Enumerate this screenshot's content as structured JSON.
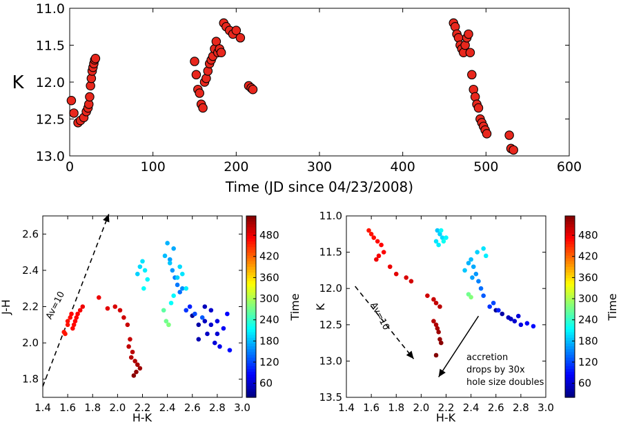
{
  "chart_data": [
    {
      "type": "scatter",
      "title": "",
      "xlabel": "Time (JD since 04/23/2008)",
      "ylabel": "K",
      "xlim": [
        0,
        600
      ],
      "ylim": [
        13.0,
        11.0
      ],
      "xticks": [
        "0",
        "100",
        "200",
        "300",
        "400",
        "500",
        "600"
      ],
      "yticks": [
        "11.0",
        "11.5",
        "12.0",
        "12.5",
        "13.0"
      ],
      "marker_color": "#e8271d",
      "x": [
        2,
        5,
        10,
        13,
        17,
        20,
        22,
        23,
        24,
        25,
        26,
        27,
        28,
        29,
        30,
        31,
        150,
        152,
        154,
        156,
        158,
        160,
        162,
        164,
        166,
        168,
        170,
        172,
        174,
        176,
        178,
        180,
        182,
        185,
        188,
        192,
        196,
        200,
        205,
        215,
        218,
        220,
        461,
        463,
        465,
        467,
        469,
        471,
        473,
        475,
        477,
        479,
        481,
        483,
        485,
        487,
        489,
        491,
        493,
        495,
        497,
        499,
        501,
        528,
        530,
        533
      ],
      "y": [
        12.25,
        12.42,
        12.55,
        12.52,
        12.48,
        12.4,
        12.35,
        12.3,
        12.2,
        12.05,
        11.95,
        11.85,
        11.8,
        11.75,
        11.7,
        11.68,
        11.72,
        11.9,
        12.1,
        12.15,
        12.3,
        12.35,
        12.0,
        11.95,
        11.85,
        11.75,
        11.7,
        11.65,
        11.55,
        11.45,
        11.6,
        11.55,
        11.6,
        11.2,
        11.25,
        11.3,
        11.35,
        11.3,
        11.4,
        12.05,
        12.08,
        12.1,
        11.2,
        11.25,
        11.35,
        11.4,
        11.5,
        11.55,
        11.6,
        11.5,
        11.4,
        11.35,
        11.6,
        11.9,
        12.1,
        12.2,
        12.3,
        12.35,
        12.5,
        12.55,
        12.6,
        12.65,
        12.7,
        12.72,
        12.9,
        12.92
      ]
    },
    {
      "type": "scatter",
      "title": "",
      "xlabel": "H-K",
      "ylabel": "J-H",
      "xlim": [
        1.4,
        3.0
      ],
      "ylim": [
        1.7,
        2.7
      ],
      "xticks": [
        "1.4",
        "1.6",
        "1.8",
        "2.0",
        "2.2",
        "2.4",
        "2.6",
        "2.8",
        "3.0"
      ],
      "yticks": [
        "1.8",
        "2.0",
        "2.2",
        "2.4",
        "2.6"
      ],
      "colorbar_label": "Time",
      "colorbar_ticks": [
        "60",
        "120",
        "180",
        "240",
        "300",
        "360",
        "420",
        "480"
      ],
      "colorbar_range": [
        20,
        535
      ],
      "annotation": "Av=10",
      "x": [
        2.6,
        2.65,
        2.7,
        2.72,
        2.75,
        2.78,
        2.8,
        2.82,
        2.85,
        2.88,
        2.9,
        2.65,
        2.7,
        2.75,
        2.8,
        2.58,
        2.55,
        2.62,
        2.68,
        2.5,
        2.48,
        2.46,
        2.52,
        2.44,
        2.42,
        2.45,
        2.4,
        2.38,
        2.42,
        2.48,
        2.5,
        2.52,
        2.55,
        2.45,
        2.43,
        2.41,
        2.2,
        2.22,
        2.24,
        2.18,
        2.16,
        2.21,
        2.39,
        2.41,
        2.37,
        1.58,
        1.6,
        1.62,
        1.64,
        1.66,
        1.68,
        1.7,
        1.72,
        1.65,
        1.67,
        1.57,
        1.6,
        1.63,
        1.85,
        1.92,
        1.98,
        2.02,
        2.05,
        2.08,
        2.1,
        2.12,
        2.14,
        2.16,
        2.18,
        2.15,
        2.13,
        2.11,
        2.09
      ],
      "y": [
        2.15,
        2.1,
        2.2,
        2.05,
        2.1,
        2.0,
        2.12,
        1.98,
        2.08,
        2.16,
        1.96,
        2.02,
        2.12,
        2.18,
        2.05,
        2.2,
        2.18,
        2.16,
        2.14,
        2.28,
        2.32,
        2.36,
        2.3,
        2.4,
        2.46,
        2.52,
        2.55,
        2.48,
        2.44,
        2.36,
        2.42,
        2.38,
        2.3,
        2.26,
        2.22,
        2.1,
        2.45,
        2.4,
        2.35,
        2.42,
        2.38,
        2.3,
        2.12,
        2.1,
        2.18,
        2.05,
        2.1,
        2.14,
        2.08,
        2.12,
        2.16,
        2.18,
        2.2,
        2.1,
        2.14,
        2.06,
        2.12,
        2.16,
        2.25,
        2.19,
        2.2,
        2.18,
        2.14,
        2.1,
        2.02,
        1.95,
        1.9,
        1.88,
        1.86,
        1.84,
        1.82,
        1.92,
        1.98
      ],
      "time": [
        30,
        40,
        50,
        55,
        60,
        65,
        70,
        75,
        80,
        85,
        90,
        45,
        52,
        58,
        62,
        100,
        110,
        120,
        130,
        140,
        145,
        150,
        155,
        160,
        165,
        170,
        175,
        180,
        185,
        190,
        195,
        200,
        205,
        210,
        215,
        220,
        200,
        205,
        210,
        195,
        190,
        215,
        270,
        280,
        260,
        460,
        462,
        465,
        467,
        470,
        472,
        475,
        478,
        466,
        469,
        461,
        463,
        468,
        480,
        485,
        490,
        493,
        495,
        498,
        500,
        505,
        510,
        515,
        520,
        525,
        530,
        508,
        502
      ]
    },
    {
      "type": "scatter",
      "title": "",
      "xlabel": "H-K",
      "ylabel": "K",
      "xlim": [
        1.4,
        3.0
      ],
      "ylim": [
        13.5,
        11.0
      ],
      "xticks": [
        "1.4",
        "1.6",
        "1.8",
        "2.0",
        "2.2",
        "2.4",
        "2.6",
        "2.8",
        "3.0"
      ],
      "yticks": [
        "11.0",
        "11.5",
        "12.0",
        "12.5",
        "13.0",
        "13.5"
      ],
      "colorbar_label": "Time",
      "colorbar_ticks": [
        "60",
        "120",
        "180",
        "240",
        "300",
        "360",
        "420",
        "480"
      ],
      "colorbar_range": [
        20,
        535
      ],
      "annotation": "Av=10",
      "annotation2": [
        "accretion",
        "drops by 30x",
        "hole size doubles"
      ],
      "x": [
        2.6,
        2.65,
        2.7,
        2.75,
        2.8,
        2.85,
        2.9,
        2.72,
        2.78,
        2.62,
        2.55,
        2.58,
        2.5,
        2.48,
        2.46,
        2.44,
        2.42,
        2.4,
        2.45,
        2.5,
        2.52,
        2.38,
        2.35,
        2.41,
        2.13,
        2.15,
        2.17,
        2.12,
        2.14,
        2.2,
        2.16,
        2.18,
        2.38,
        2.4,
        1.58,
        1.6,
        1.62,
        1.65,
        1.68,
        1.7,
        1.66,
        1.64,
        1.75,
        1.8,
        1.88,
        1.92,
        2.05,
        2.1,
        2.12,
        2.15,
        2.1,
        2.12,
        2.13,
        2.14,
        2.15,
        2.16,
        2.12
      ],
      "y": [
        12.3,
        12.35,
        12.4,
        12.45,
        12.5,
        12.48,
        12.52,
        12.42,
        12.38,
        12.3,
        12.25,
        12.2,
        12.1,
        12.0,
        11.9,
        11.8,
        11.7,
        11.6,
        11.5,
        11.45,
        11.55,
        11.65,
        11.75,
        11.85,
        11.2,
        11.25,
        11.3,
        11.35,
        11.4,
        11.3,
        11.2,
        11.35,
        12.08,
        12.12,
        11.2,
        11.25,
        11.3,
        11.35,
        11.4,
        11.5,
        11.55,
        11.6,
        11.7,
        11.8,
        11.85,
        11.9,
        12.1,
        12.15,
        12.2,
        12.25,
        12.45,
        12.5,
        12.55,
        12.6,
        12.7,
        12.75,
        12.92
      ],
      "time": [
        30,
        40,
        50,
        60,
        70,
        80,
        90,
        55,
        65,
        100,
        110,
        120,
        130,
        140,
        150,
        160,
        170,
        180,
        190,
        200,
        205,
        175,
        185,
        165,
        185,
        190,
        195,
        200,
        205,
        210,
        215,
        220,
        270,
        280,
        460,
        462,
        465,
        467,
        470,
        472,
        475,
        478,
        480,
        485,
        490,
        493,
        495,
        498,
        500,
        505,
        508,
        510,
        515,
        520,
        525,
        530,
        533
      ]
    }
  ]
}
